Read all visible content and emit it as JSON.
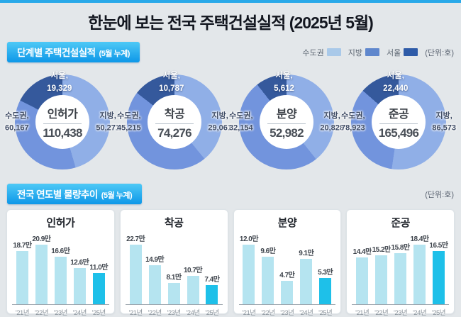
{
  "title": "한눈에 보는 전국 주택건설실적  (2025년 5월)",
  "colors": {
    "accent": "#29a9e9",
    "donut_jibang": "#90afe7",
    "donut_sudogwon": "#7294dd",
    "donut_seoul": "#35599c",
    "bar_normal": "#b5e4f0",
    "bar_highlight": "#1ec0e9",
    "badge_gradient_top": "#4ec9f6",
    "badge_gradient_bottom": "#0d97e8",
    "background": "#e3e7ea"
  },
  "section1": {
    "badge": "단계별 주택건설실적",
    "badge_suffix": "(5월 누계)",
    "unit": "(단위:호)",
    "legend": [
      {
        "label": "수도권",
        "color": "#a9c9e9"
      },
      {
        "label": "지방",
        "color": "#5f87cd"
      },
      {
        "label": "서울",
        "color": "#2e5ba8"
      }
    ]
  },
  "section2": {
    "badge": "전국 연도별 물량추이",
    "badge_suffix": "(5월 누계)",
    "unit": "(단위:호)"
  },
  "chart_data": [
    {
      "type": "pie",
      "subtype": "donut",
      "title": "인허가",
      "total": 110438,
      "total_display": "110,438",
      "segments": [
        {
          "name": "지방",
          "label": "지방,",
          "value": 50271,
          "display": "50,271"
        },
        {
          "name": "수도권",
          "label": "수도권,",
          "value": 60167,
          "display": "60,167"
        },
        {
          "name": "서울",
          "label": "서울,",
          "value": 19329,
          "display": "19,329"
        }
      ]
    },
    {
      "type": "pie",
      "subtype": "donut",
      "title": "착공",
      "total": 74276,
      "total_display": "74,276",
      "segments": [
        {
          "name": "지방",
          "label": "지방,",
          "value": 29061,
          "display": "29,061"
        },
        {
          "name": "수도권",
          "label": "수도권,",
          "value": 45215,
          "display": "45,215"
        },
        {
          "name": "서울",
          "label": "서울,",
          "value": 10787,
          "display": "10,787"
        }
      ]
    },
    {
      "type": "pie",
      "subtype": "donut",
      "title": "분양",
      "total": 52982,
      "total_display": "52,982",
      "segments": [
        {
          "name": "지방",
          "label": "지방,",
          "value": 20828,
          "display": "20,828"
        },
        {
          "name": "수도권",
          "label": "수도권,",
          "value": 32154,
          "display": "32,154"
        },
        {
          "name": "서울",
          "label": "서울,",
          "value": 5612,
          "display": "5,612"
        }
      ]
    },
    {
      "type": "pie",
      "subtype": "donut",
      "title": "준공",
      "total": 165496,
      "total_display": "165,496",
      "segments": [
        {
          "name": "지방",
          "label": "지방,",
          "value": 86573,
          "display": "86,573"
        },
        {
          "name": "수도권",
          "label": "수도권,",
          "value": 78923,
          "display": "78,923"
        },
        {
          "name": "서울",
          "label": "서울,",
          "value": 22440,
          "display": "22,440"
        }
      ]
    },
    {
      "type": "bar",
      "title": "인허가",
      "categories": [
        "'21년",
        "'22년",
        "'23년",
        "'24년",
        "'25년"
      ],
      "values": [
        18.7,
        20.9,
        16.6,
        12.6,
        11.0
      ],
      "value_labels": [
        "18.7만",
        "20.9만",
        "16.6만",
        "12.6만",
        "11.0만"
      ],
      "highlight_index": 4,
      "ylim": [
        0,
        20.9
      ]
    },
    {
      "type": "bar",
      "title": "착공",
      "categories": [
        "'21년",
        "'22년",
        "'23년",
        "'24년",
        "'25년"
      ],
      "values": [
        22.7,
        14.9,
        8.1,
        10.7,
        7.4
      ],
      "value_labels": [
        "22.7만",
        "14.9만",
        "8.1만",
        "10.7만",
        "7.4만"
      ],
      "highlight_index": 4,
      "ylim": [
        0,
        22.7
      ]
    },
    {
      "type": "bar",
      "title": "분양",
      "categories": [
        "'21년",
        "'22년",
        "'23년",
        "'24년",
        "'25년"
      ],
      "values": [
        12.0,
        9.6,
        4.7,
        9.1,
        5.3
      ],
      "value_labels": [
        "12.0만",
        "9.6만",
        "4.7만",
        "9.1만",
        "5.3만"
      ],
      "highlight_index": 4,
      "ylim": [
        0,
        12.0
      ]
    },
    {
      "type": "bar",
      "title": "준공",
      "categories": [
        "'21년",
        "'22년",
        "'23년",
        "'24년",
        "'25년"
      ],
      "values": [
        14.4,
        15.2,
        15.8,
        18.4,
        16.5
      ],
      "value_labels": [
        "14.4만",
        "15.2만",
        "15.8만",
        "18.4만",
        "16.5만"
      ],
      "highlight_index": 4,
      "ylim": [
        0,
        18.4
      ]
    }
  ]
}
